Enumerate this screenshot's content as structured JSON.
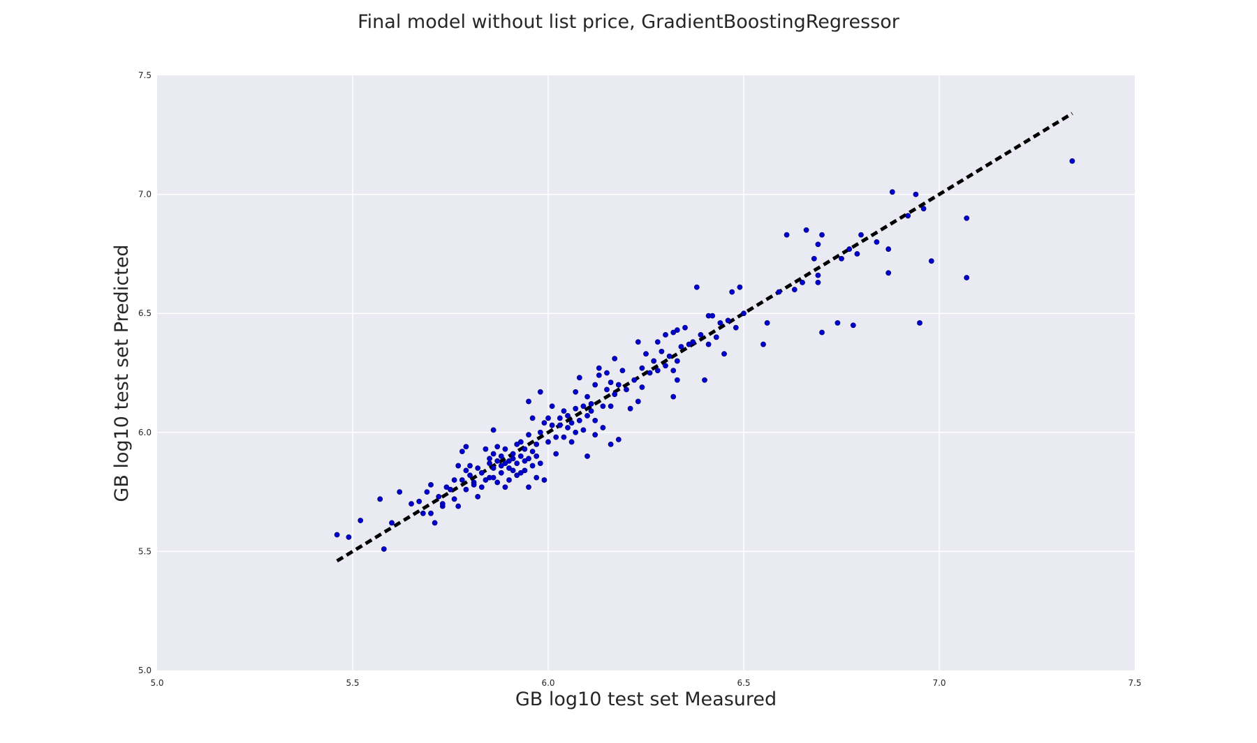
{
  "chart_data": {
    "type": "scatter",
    "title": "Final model without list price, GradientBoostingRegressor",
    "xlabel": "GB log10 test set Measured",
    "ylabel": "GB log10 test set Predicted",
    "xlim": [
      5.0,
      7.5
    ],
    "ylim": [
      5.0,
      7.5
    ],
    "xticks": [
      "5.0",
      "5.5",
      "6.0",
      "6.5",
      "7.0",
      "7.5"
    ],
    "yticks": [
      "5.0",
      "5.5",
      "6.0",
      "6.5",
      "7.0",
      "7.5"
    ],
    "grid": true,
    "colors": {
      "background": "#eaeaf2",
      "grid": "#ffffff",
      "points": "#0000cc",
      "line": "#000000"
    },
    "reference_line": {
      "style": "dashed",
      "x": [
        5.46,
        7.34
      ],
      "y": [
        5.46,
        7.34
      ]
    },
    "series": [
      {
        "points": [
          [
            5.46,
            5.57
          ],
          [
            5.49,
            5.56
          ],
          [
            5.52,
            5.63
          ],
          [
            5.58,
            5.51
          ],
          [
            5.57,
            5.72
          ],
          [
            5.6,
            5.62
          ],
          [
            5.62,
            5.75
          ],
          [
            5.65,
            5.7
          ],
          [
            5.67,
            5.71
          ],
          [
            5.68,
            5.66
          ],
          [
            5.69,
            5.75
          ],
          [
            5.7,
            5.78
          ],
          [
            5.7,
            5.66
          ],
          [
            5.71,
            5.62
          ],
          [
            5.72,
            5.73
          ],
          [
            5.73,
            5.69
          ],
          [
            5.73,
            5.7
          ],
          [
            5.74,
            5.77
          ],
          [
            5.75,
            5.76
          ],
          [
            5.76,
            5.8
          ],
          [
            5.76,
            5.72
          ],
          [
            5.77,
            5.69
          ],
          [
            5.77,
            5.86
          ],
          [
            5.78,
            5.8
          ],
          [
            5.78,
            5.92
          ],
          [
            5.79,
            5.76
          ],
          [
            5.79,
            5.84
          ],
          [
            5.79,
            5.94
          ],
          [
            5.8,
            5.82
          ],
          [
            5.8,
            5.86
          ],
          [
            5.81,
            5.79
          ],
          [
            5.81,
            5.78
          ],
          [
            5.82,
            5.85
          ],
          [
            5.82,
            5.73
          ],
          [
            5.83,
            5.83
          ],
          [
            5.83,
            5.77
          ],
          [
            5.84,
            5.93
          ],
          [
            5.84,
            5.8
          ],
          [
            5.85,
            5.87
          ],
          [
            5.85,
            5.81
          ],
          [
            5.85,
            5.89
          ],
          [
            5.86,
            5.85
          ],
          [
            5.86,
            5.91
          ],
          [
            5.86,
            5.81
          ],
          [
            5.86,
            6.01
          ],
          [
            5.87,
            5.88
          ],
          [
            5.87,
            5.79
          ],
          [
            5.87,
            5.94
          ],
          [
            5.88,
            5.86
          ],
          [
            5.88,
            5.9
          ],
          [
            5.88,
            5.83
          ],
          [
            5.89,
            5.77
          ],
          [
            5.89,
            5.87
          ],
          [
            5.89,
            5.93
          ],
          [
            5.9,
            5.85
          ],
          [
            5.9,
            5.88
          ],
          [
            5.9,
            5.8
          ],
          [
            5.91,
            5.91
          ],
          [
            5.91,
            5.84
          ],
          [
            5.91,
            5.89
          ],
          [
            5.92,
            5.82
          ],
          [
            5.92,
            5.95
          ],
          [
            5.92,
            5.87
          ],
          [
            5.93,
            5.9
          ],
          [
            5.93,
            5.83
          ],
          [
            5.93,
            5.96
          ],
          [
            5.94,
            5.88
          ],
          [
            5.94,
            5.84
          ],
          [
            5.94,
            5.93
          ],
          [
            5.95,
            5.77
          ],
          [
            5.95,
            5.89
          ],
          [
            5.95,
            6.13
          ],
          [
            5.95,
            5.99
          ],
          [
            5.96,
            5.86
          ],
          [
            5.96,
            5.92
          ],
          [
            5.96,
            6.06
          ],
          [
            5.97,
            5.81
          ],
          [
            5.97,
            5.95
          ],
          [
            5.97,
            5.9
          ],
          [
            5.98,
            6.0
          ],
          [
            5.98,
            5.87
          ],
          [
            5.98,
            6.17
          ],
          [
            5.99,
            5.8
          ],
          [
            5.99,
            6.04
          ],
          [
            6.0,
            5.96
          ],
          [
            6.0,
            6.06
          ],
          [
            6.01,
            6.03
          ],
          [
            6.01,
            6.11
          ],
          [
            6.02,
            5.91
          ],
          [
            6.02,
            5.98
          ],
          [
            6.03,
            6.06
          ],
          [
            6.03,
            6.03
          ],
          [
            6.04,
            5.98
          ],
          [
            6.04,
            6.09
          ],
          [
            6.05,
            6.02
          ],
          [
            6.05,
            6.07
          ],
          [
            6.06,
            6.04
          ],
          [
            6.06,
            5.96
          ],
          [
            6.07,
            6.1
          ],
          [
            6.07,
            6.0
          ],
          [
            6.07,
            6.17
          ],
          [
            6.08,
            6.23
          ],
          [
            6.08,
            6.05
          ],
          [
            6.09,
            6.11
          ],
          [
            6.09,
            6.01
          ],
          [
            6.1,
            6.07
          ],
          [
            6.1,
            5.9
          ],
          [
            6.1,
            6.15
          ],
          [
            6.11,
            6.09
          ],
          [
            6.11,
            6.12
          ],
          [
            6.12,
            5.99
          ],
          [
            6.12,
            6.2
          ],
          [
            6.12,
            6.05
          ],
          [
            6.13,
            6.24
          ],
          [
            6.13,
            6.27
          ],
          [
            6.14,
            6.11
          ],
          [
            6.14,
            6.02
          ],
          [
            6.15,
            6.18
          ],
          [
            6.15,
            6.25
          ],
          [
            6.16,
            6.11
          ],
          [
            6.16,
            6.21
          ],
          [
            6.16,
            5.95
          ],
          [
            6.17,
            6.16
          ],
          [
            6.17,
            6.31
          ],
          [
            6.18,
            6.2
          ],
          [
            6.18,
            5.97
          ],
          [
            6.19,
            6.26
          ],
          [
            6.2,
            6.18
          ],
          [
            6.21,
            6.1
          ],
          [
            6.22,
            6.22
          ],
          [
            6.23,
            6.38
          ],
          [
            6.23,
            6.13
          ],
          [
            6.24,
            6.19
          ],
          [
            6.24,
            6.27
          ],
          [
            6.25,
            6.33
          ],
          [
            6.26,
            6.25
          ],
          [
            6.27,
            6.3
          ],
          [
            6.28,
            6.26
          ],
          [
            6.28,
            6.38
          ],
          [
            6.29,
            6.34
          ],
          [
            6.3,
            6.28
          ],
          [
            6.3,
            6.41
          ],
          [
            6.31,
            6.32
          ],
          [
            6.32,
            6.42
          ],
          [
            6.32,
            6.15
          ],
          [
            6.32,
            6.26
          ],
          [
            6.33,
            6.22
          ],
          [
            6.33,
            6.3
          ],
          [
            6.33,
            6.43
          ],
          [
            6.34,
            6.36
          ],
          [
            6.35,
            6.44
          ],
          [
            6.36,
            6.37
          ],
          [
            6.37,
            6.38
          ],
          [
            6.38,
            6.61
          ],
          [
            6.39,
            6.41
          ],
          [
            6.4,
            6.22
          ],
          [
            6.41,
            6.49
          ],
          [
            6.41,
            6.37
          ],
          [
            6.42,
            6.49
          ],
          [
            6.43,
            6.4
          ],
          [
            6.44,
            6.46
          ],
          [
            6.45,
            6.33
          ],
          [
            6.46,
            6.47
          ],
          [
            6.47,
            6.59
          ],
          [
            6.48,
            6.44
          ],
          [
            6.49,
            6.61
          ],
          [
            6.5,
            6.5
          ],
          [
            6.55,
            6.37
          ],
          [
            6.56,
            6.46
          ],
          [
            6.59,
            6.59
          ],
          [
            6.61,
            6.83
          ],
          [
            6.63,
            6.6
          ],
          [
            6.65,
            6.63
          ],
          [
            6.66,
            6.85
          ],
          [
            6.68,
            6.73
          ],
          [
            6.69,
            6.79
          ],
          [
            6.69,
            6.66
          ],
          [
            6.69,
            6.63
          ],
          [
            6.7,
            6.83
          ],
          [
            6.7,
            6.42
          ],
          [
            6.74,
            6.46
          ],
          [
            6.75,
            6.73
          ],
          [
            6.77,
            6.77
          ],
          [
            6.78,
            6.45
          ],
          [
            6.79,
            6.75
          ],
          [
            6.8,
            6.83
          ],
          [
            6.84,
            6.8
          ],
          [
            6.87,
            6.77
          ],
          [
            6.87,
            6.67
          ],
          [
            6.88,
            7.01
          ],
          [
            6.92,
            6.91
          ],
          [
            6.94,
            7.0
          ],
          [
            6.95,
            6.46
          ],
          [
            6.96,
            6.94
          ],
          [
            6.98,
            6.72
          ],
          [
            7.07,
            6.9
          ],
          [
            7.07,
            6.65
          ],
          [
            7.34,
            7.14
          ]
        ]
      }
    ]
  }
}
